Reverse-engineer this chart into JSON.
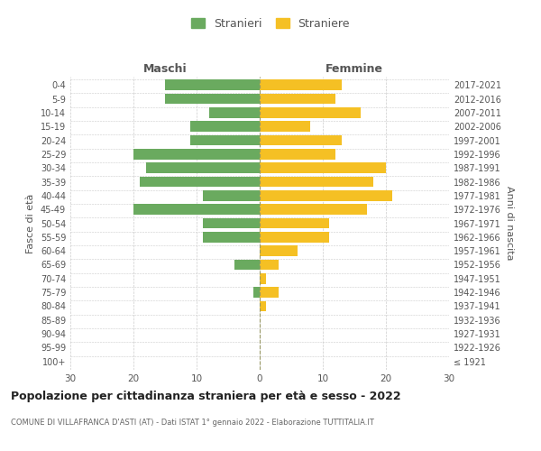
{
  "age_groups": [
    "100+",
    "95-99",
    "90-94",
    "85-89",
    "80-84",
    "75-79",
    "70-74",
    "65-69",
    "60-64",
    "55-59",
    "50-54",
    "45-49",
    "40-44",
    "35-39",
    "30-34",
    "25-29",
    "20-24",
    "15-19",
    "10-14",
    "5-9",
    "0-4"
  ],
  "birth_years": [
    "≤ 1921",
    "1922-1926",
    "1927-1931",
    "1932-1936",
    "1937-1941",
    "1942-1946",
    "1947-1951",
    "1952-1956",
    "1957-1961",
    "1962-1966",
    "1967-1971",
    "1972-1976",
    "1977-1981",
    "1982-1986",
    "1987-1991",
    "1992-1996",
    "1997-2001",
    "2002-2006",
    "2007-2011",
    "2012-2016",
    "2017-2021"
  ],
  "males": [
    0,
    0,
    0,
    0,
    0,
    1,
    0,
    4,
    0,
    9,
    9,
    20,
    9,
    19,
    18,
    20,
    11,
    11,
    8,
    15,
    15
  ],
  "females": [
    0,
    0,
    0,
    0,
    1,
    3,
    1,
    3,
    6,
    11,
    11,
    17,
    21,
    18,
    20,
    12,
    13,
    8,
    16,
    12,
    13
  ],
  "male_color": "#6aaa5f",
  "female_color": "#f5c024",
  "background_color": "#ffffff",
  "grid_color": "#cccccc",
  "center_line_color": "#999966",
  "title": "Popolazione per cittadinanza straniera per età e sesso - 2022",
  "subtitle": "COMUNE DI VILLAFRANCA D'ASTI (AT) - Dati ISTAT 1° gennaio 2022 - Elaborazione TUTTITALIA.IT",
  "left_label": "Maschi",
  "right_label": "Femmine",
  "y_left_label": "Fasce di età",
  "y_right_label": "Anni di nascita",
  "legend_stranieri": "Stranieri",
  "legend_straniere": "Straniere",
  "xlim": 30,
  "bar_height": 0.75
}
